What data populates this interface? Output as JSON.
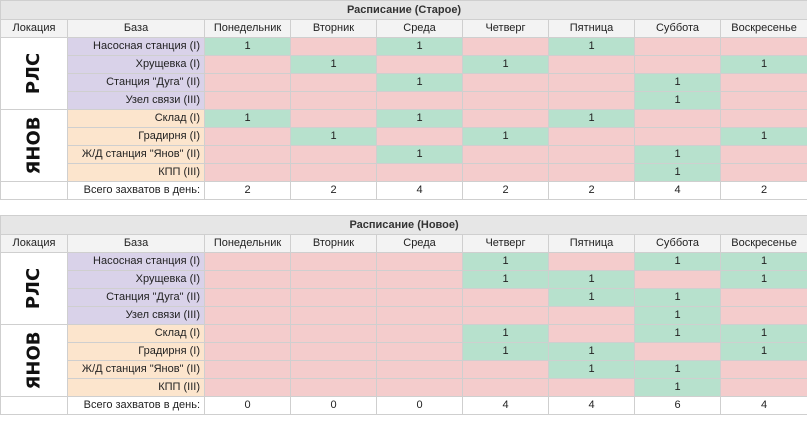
{
  "columns": {
    "location": "Локация",
    "base": "База",
    "days": [
      "Понедельник",
      "Вторник",
      "Среда",
      "Четверг",
      "Пятница",
      "Суббота",
      "Воскресенье"
    ]
  },
  "colors": {
    "on": "#b7e1cd",
    "off": "#f4cccc",
    "rls_base": "#d9d2e9",
    "yanov_base": "#fce5cd"
  },
  "old": {
    "title": "Расписание (Старое)",
    "groups": [
      {
        "location": "РЛС",
        "rows": [
          {
            "base": "Насосная станция (I)",
            "values": [
              "1",
              "",
              "1",
              "",
              "1",
              "",
              ""
            ]
          },
          {
            "base": "Хрущевка (I)",
            "values": [
              "",
              "1",
              "",
              "1",
              "",
              "",
              "1"
            ]
          },
          {
            "base": "Станция \"Дуга\" (II)",
            "values": [
              "",
              "",
              "1",
              "",
              "",
              "1",
              ""
            ]
          },
          {
            "base": "Узел связи (III)",
            "values": [
              "",
              "",
              "",
              "",
              "",
              "1",
              ""
            ]
          }
        ]
      },
      {
        "location": "ЯНОВ",
        "rows": [
          {
            "base": "Склад (I)",
            "values": [
              "1",
              "",
              "1",
              "",
              "1",
              "",
              ""
            ]
          },
          {
            "base": "Градирня  (I)",
            "values": [
              "",
              "1",
              "",
              "1",
              "",
              "",
              "1"
            ]
          },
          {
            "base": "Ж/Д станция \"Янов\" (II)",
            "values": [
              "",
              "",
              "1",
              "",
              "",
              "1",
              ""
            ]
          },
          {
            "base": "КПП (III)",
            "values": [
              "",
              "",
              "",
              "",
              "",
              "1",
              ""
            ]
          }
        ]
      }
    ],
    "total_label": "Всего захватов в день:",
    "totals": [
      "2",
      "2",
      "4",
      "2",
      "2",
      "4",
      "2"
    ]
  },
  "new": {
    "title": "Расписание (Новое)",
    "groups": [
      {
        "location": "РЛС",
        "rows": [
          {
            "base": "Насосная станция (I)",
            "values": [
              "",
              "",
              "",
              "1",
              "",
              "1",
              "1"
            ]
          },
          {
            "base": "Хрущевка (I)",
            "values": [
              "",
              "",
              "",
              "1",
              "1",
              "",
              "1"
            ]
          },
          {
            "base": "Станция \"Дуга\" (II)",
            "values": [
              "",
              "",
              "",
              "",
              "1",
              "1",
              ""
            ]
          },
          {
            "base": "Узел связи (III)",
            "values": [
              "",
              "",
              "",
              "",
              "",
              "1",
              ""
            ]
          }
        ]
      },
      {
        "location": "ЯНОВ",
        "rows": [
          {
            "base": "Склад (I)",
            "values": [
              "",
              "",
              "",
              "1",
              "",
              "1",
              "1"
            ]
          },
          {
            "base": "Градирня  (I)",
            "values": [
              "",
              "",
              "",
              "1",
              "1",
              "",
              "1"
            ]
          },
          {
            "base": "Ж/Д станция \"Янов\" (II)",
            "values": [
              "",
              "",
              "",
              "",
              "1",
              "1",
              ""
            ]
          },
          {
            "base": "КПП (III)",
            "values": [
              "",
              "",
              "",
              "",
              "",
              "1",
              ""
            ]
          }
        ]
      }
    ],
    "total_label": "Всего захватов в день:",
    "totals": [
      "0",
      "0",
      "0",
      "4",
      "4",
      "6",
      "4"
    ]
  }
}
